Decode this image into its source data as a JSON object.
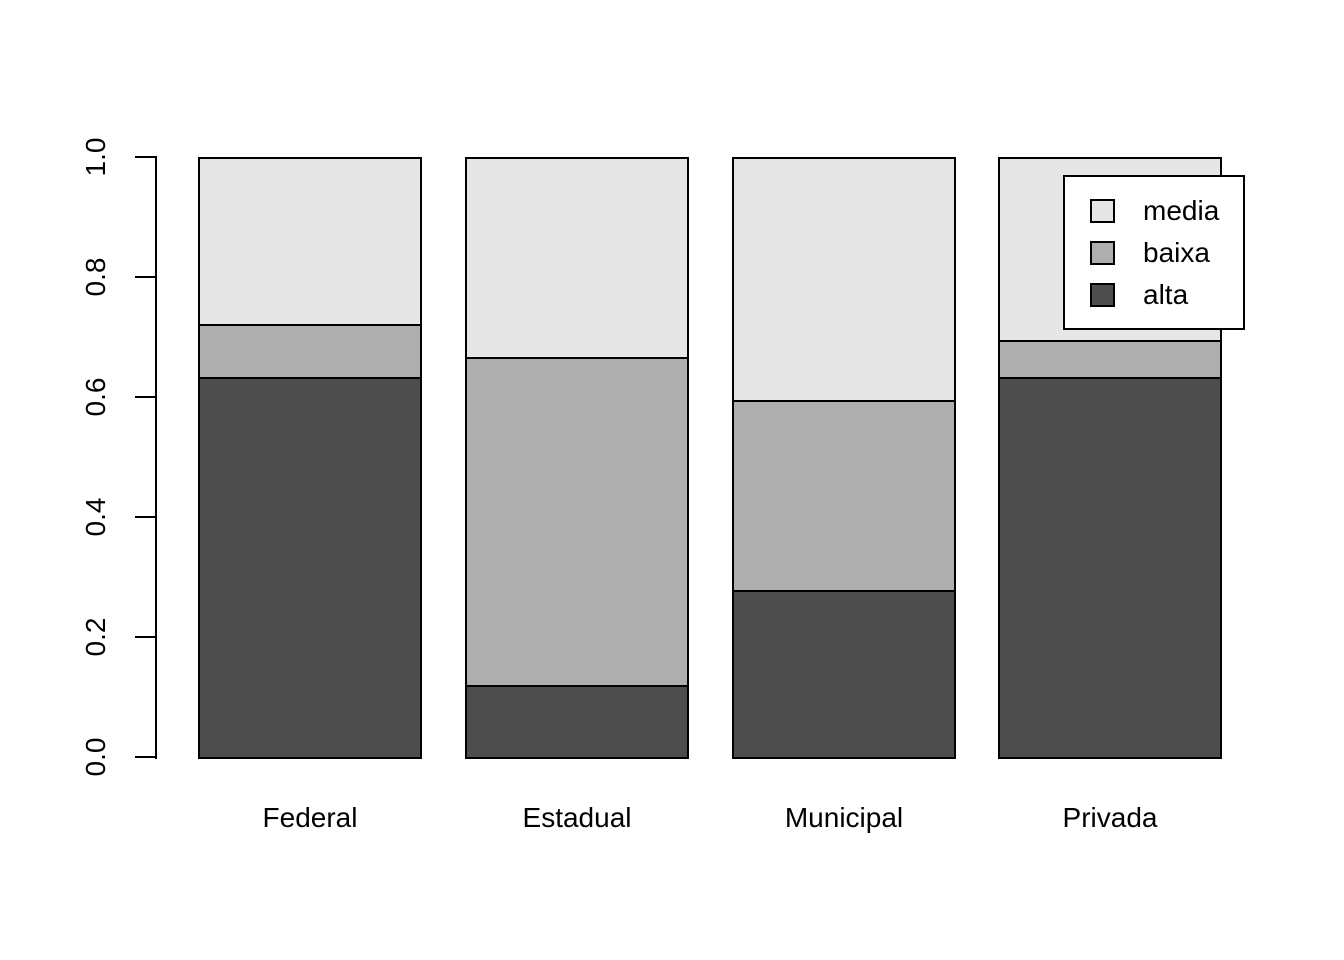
{
  "figure": {
    "background_color": "#FFFFFF",
    "text_color": "#000000",
    "axis_color": "#000000",
    "bar_border_color": "#000000"
  },
  "chart_data": {
    "type": "bar",
    "stacked": true,
    "title": "",
    "xlabel": "",
    "ylabel": "",
    "categories": [
      "Federal",
      "Estadual",
      "Municipal",
      "Privada"
    ],
    "series": [
      {
        "name": "alta",
        "color": "#4D4D4D",
        "values": [
          0.633,
          0.12,
          0.278,
          0.633
        ]
      },
      {
        "name": "baixa",
        "color": "#AEAEAE",
        "values": [
          0.088,
          0.547,
          0.318,
          0.062
        ]
      },
      {
        "name": "media",
        "color": "#E6E6E6",
        "values": [
          0.279,
          0.333,
          0.404,
          0.305
        ]
      }
    ],
    "ylim": [
      0.0,
      1.0
    ],
    "yticks": [
      "0.0",
      "0.2",
      "0.4",
      "0.6",
      "0.8",
      "1.0"
    ],
    "grid": false,
    "legend": {
      "position": "top-right",
      "entries": [
        {
          "label": "media",
          "color": "#E6E6E6"
        },
        {
          "label": "baixa",
          "color": "#AEAEAE"
        },
        {
          "label": "alta",
          "color": "#4D4D4D"
        }
      ]
    }
  }
}
